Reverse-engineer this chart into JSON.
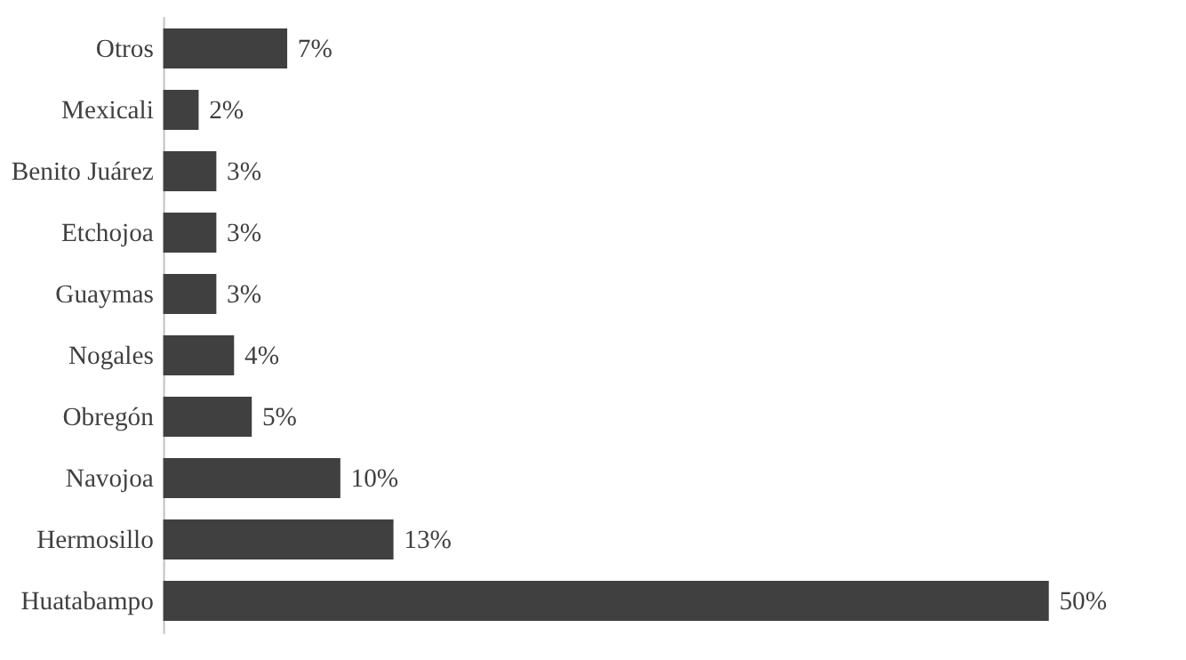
{
  "chart_data": {
    "type": "bar",
    "orientation": "horizontal",
    "categories": [
      "Otros",
      "Mexicali",
      "Benito Juárez",
      "Etchojoa",
      "Guaymas",
      "Nogales",
      "Obregón",
      "Navojoa",
      "Hermosillo",
      "Huatabampo"
    ],
    "values": [
      7,
      2,
      3,
      3,
      3,
      4,
      5,
      10,
      13,
      50
    ],
    "value_labels": [
      "7%",
      "2%",
      "3%",
      "3%",
      "3%",
      "4%",
      "5%",
      "10%",
      "13%",
      "50%"
    ],
    "color": "#404040"
  }
}
